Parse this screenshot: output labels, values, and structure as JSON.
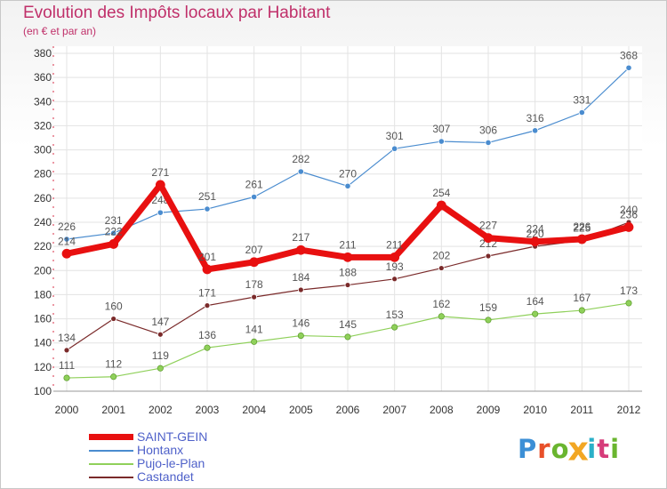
{
  "title": "Evolution des Impôts locaux par Habitant",
  "subtitle": "(en € et par an)",
  "logo_text": "Proxiti",
  "logo_colors": [
    "#3c8fd6",
    "#e8502a",
    "#6ab52f",
    "#f2a724",
    "#2bb0c8",
    "#d63c7a",
    "#6ab52f"
  ],
  "chart_data": {
    "type": "line",
    "title": "Evolution des Impôts locaux par Habitant",
    "ylabel": "(en € et par an)",
    "xlabel": "",
    "ylim": [
      100,
      380
    ],
    "yticks": [
      100,
      120,
      140,
      160,
      180,
      200,
      220,
      240,
      260,
      280,
      300,
      320,
      340,
      360,
      380
    ],
    "categories": [
      "2000",
      "2001",
      "2002",
      "2003",
      "2004",
      "2005",
      "2006",
      "2007",
      "2008",
      "2009",
      "2010",
      "2011",
      "2012"
    ],
    "grid": true,
    "legend_position": "bottom-left",
    "series": [
      {
        "name": "Hontanx",
        "color": "#4a8ccf",
        "values": [
          226,
          231,
          248,
          251,
          261,
          282,
          270,
          301,
          307,
          306,
          316,
          331,
          368
        ]
      },
      {
        "name": "Pujo-le-Plan",
        "color": "#8fd05a",
        "values": [
          111,
          112,
          119,
          136,
          141,
          146,
          145,
          153,
          162,
          159,
          164,
          167,
          173
        ]
      },
      {
        "name": "Castandet",
        "color": "#7a2a2a",
        "values": [
          134,
          160,
          147,
          171,
          178,
          184,
          188,
          193,
          202,
          212,
          220,
          225,
          240
        ]
      },
      {
        "name": "SAINT-GEIN",
        "color": "#e81010",
        "values": [
          214,
          222,
          271,
          201,
          207,
          217,
          211,
          211,
          254,
          227,
          224,
          226,
          236
        ]
      }
    ],
    "legend_order": [
      "SAINT-GEIN",
      "Hontanx",
      "Pujo-le-Plan",
      "Castandet"
    ]
  }
}
